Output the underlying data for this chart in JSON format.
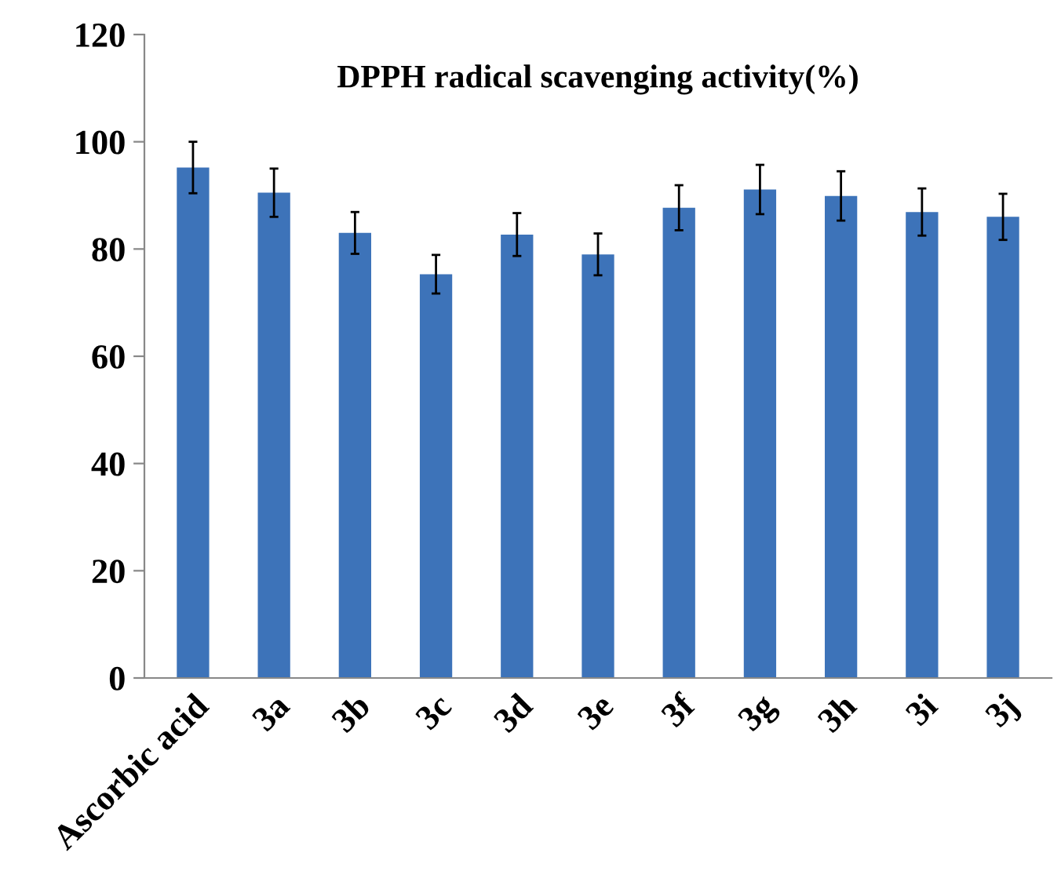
{
  "chart_data": {
    "type": "bar",
    "title": "DPPH radical scavenging activity(%)",
    "categories": [
      "Ascorbic acid",
      "3a",
      "3b",
      "3c",
      "3d",
      "3e",
      "3f",
      "3g",
      "3h",
      "3i",
      "3j"
    ],
    "values": [
      95.2,
      90.5,
      83.0,
      75.3,
      82.7,
      79.0,
      87.7,
      91.1,
      89.9,
      86.9,
      86.0
    ],
    "errors": [
      4.8,
      4.5,
      3.9,
      3.6,
      4.0,
      3.9,
      4.2,
      4.6,
      4.6,
      4.4,
      4.3
    ],
    "color": "#3d73b9",
    "ylim": [
      0,
      120
    ],
    "yticks": [
      0,
      20,
      40,
      60,
      80,
      100,
      120
    ],
    "grid": false,
    "legend": false
  }
}
